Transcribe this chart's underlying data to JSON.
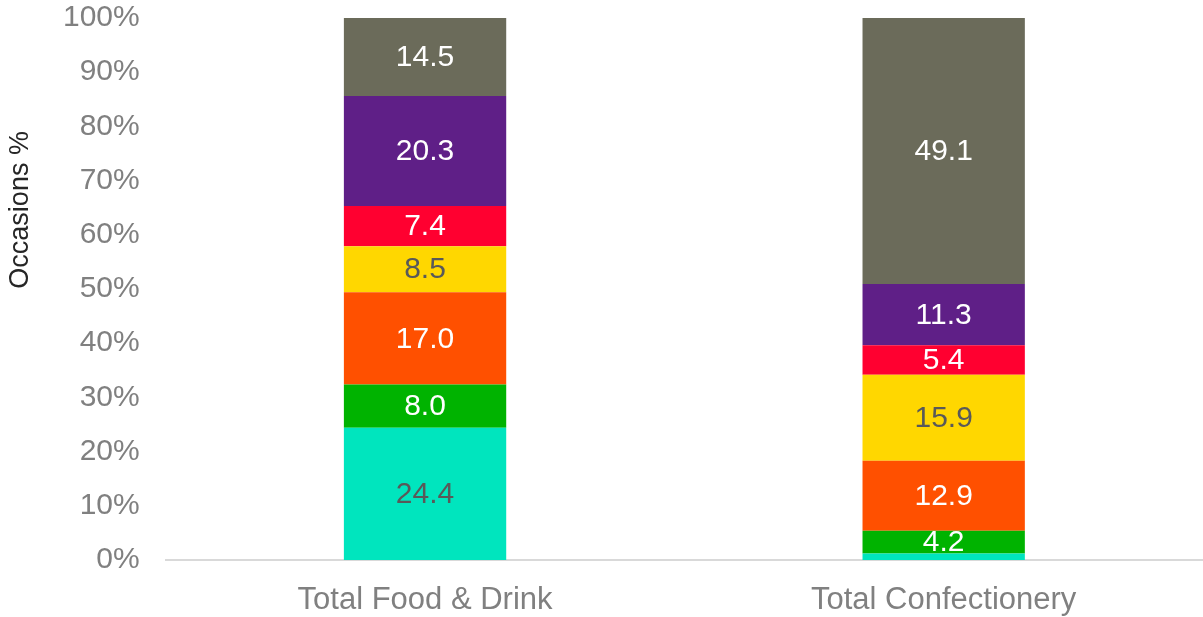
{
  "chart_data": {
    "type": "bar",
    "stacked": true,
    "ylabel": "Occasions %",
    "categories": [
      "Total Food & Drink",
      "Total Confectionery"
    ],
    "ylim": [
      0,
      100
    ],
    "yticks": [
      {
        "value": 0,
        "label": "0%"
      },
      {
        "value": 10,
        "label": "10%"
      },
      {
        "value": 20,
        "label": "20%"
      },
      {
        "value": 30,
        "label": "30%"
      },
      {
        "value": 40,
        "label": "40%"
      },
      {
        "value": 50,
        "label": "50%"
      },
      {
        "value": 60,
        "label": "60%"
      },
      {
        "value": 70,
        "label": "70%"
      },
      {
        "value": 80,
        "label": "80%"
      },
      {
        "value": 90,
        "label": "90%"
      },
      {
        "value": 100,
        "label": "100%"
      }
    ],
    "series": [
      {
        "color": "#00e5be",
        "values": [
          24.4,
          1.2
        ],
        "value_labels": [
          "24.4",
          null
        ]
      },
      {
        "color": "#00b300",
        "values": [
          8.0,
          4.2
        ],
        "value_labels": [
          "8.0",
          "4.2"
        ]
      },
      {
        "color": "#ff5000",
        "values": [
          17.0,
          12.9
        ],
        "value_labels": [
          "17.0",
          "12.9"
        ]
      },
      {
        "color": "#ffd700",
        "values": [
          8.5,
          15.9
        ],
        "value_labels": [
          "8.5",
          "15.9"
        ]
      },
      {
        "color": "#ff0030",
        "values": [
          7.4,
          5.4
        ],
        "value_labels": [
          "7.4",
          "5.4"
        ]
      },
      {
        "color": "#5f1f87",
        "values": [
          20.3,
          11.3
        ],
        "value_labels": [
          "20.3",
          "11.3"
        ]
      },
      {
        "color": "#6b6b5a",
        "values": [
          14.5,
          49.1
        ],
        "value_labels": [
          "14.5",
          "49.1"
        ]
      }
    ]
  }
}
